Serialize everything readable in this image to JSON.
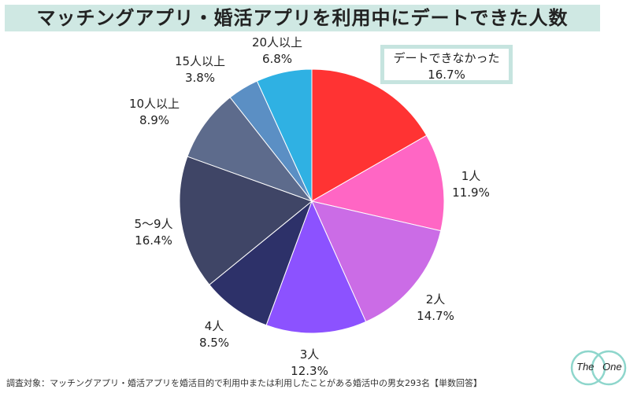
{
  "header": {
    "title": "マッチングアプリ・婚活アプリを利用中にデートできた人数"
  },
  "chart_data": {
    "type": "pie",
    "title": "マッチングアプリ・婚活アプリを利用中にデートできた人数",
    "start": "12 o'clock, clockwise",
    "slices": [
      {
        "name": "デートできなかった",
        "value": 16.7,
        "label": "16.7%",
        "color": "#ff3333"
      },
      {
        "name": "1人",
        "value": 11.9,
        "label": "11.9%",
        "color": "#ff66c4"
      },
      {
        "name": "2人",
        "value": 14.7,
        "label": "14.7%",
        "color": "#cb6ce6"
      },
      {
        "name": "3人",
        "value": 12.3,
        "label": "12.3%",
        "color": "#8c52ff"
      },
      {
        "name": "4人",
        "value": 8.5,
        "label": "8.5%",
        "color": "#2d3169"
      },
      {
        "name": "5〜9人",
        "value": 16.4,
        "label": "16.4%",
        "color": "#3f4566"
      },
      {
        "name": "10人以上",
        "value": 8.9,
        "label": "8.9%",
        "color": "#5d6b8c"
      },
      {
        "name": "15人以上",
        "value": 3.8,
        "label": "3.8%",
        "color": "#5b8fc4"
      },
      {
        "name": "20人以上",
        "value": 6.8,
        "label": "6.8%",
        "color": "#2fb1e3"
      }
    ]
  },
  "footnote": "調査対象：マッチングアプリ・婚活アプリを婚活目的で利用中または利用したことがある婚活中の男女293名【単数回答】",
  "logo": {
    "left_text": "The",
    "right_text": "One"
  }
}
